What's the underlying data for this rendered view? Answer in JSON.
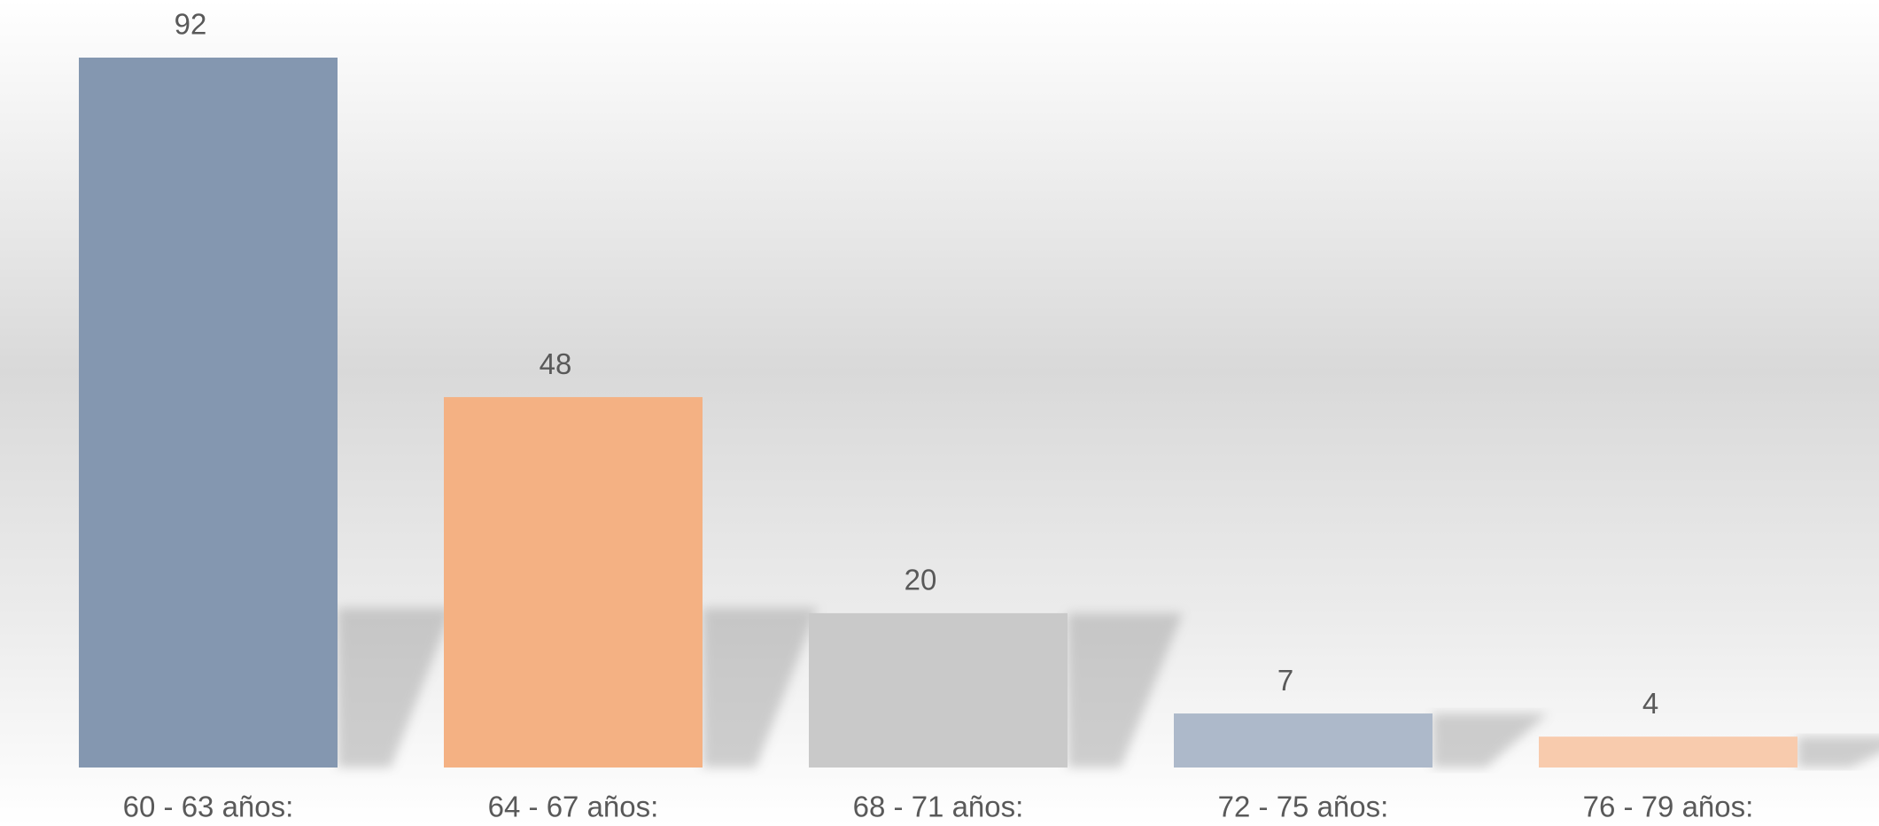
{
  "chart_data": {
    "type": "bar",
    "categories": [
      "60 - 63 años:",
      "64 - 67 años:",
      "68 - 71 años:",
      "72 - 75 años:",
      "76 - 79 años:"
    ],
    "values": [
      92,
      48,
      20,
      7,
      4
    ],
    "colors": [
      "#8497b0",
      "#f4b183",
      "#c9c9c9",
      "#adb9ca",
      "#f8cbad"
    ]
  }
}
